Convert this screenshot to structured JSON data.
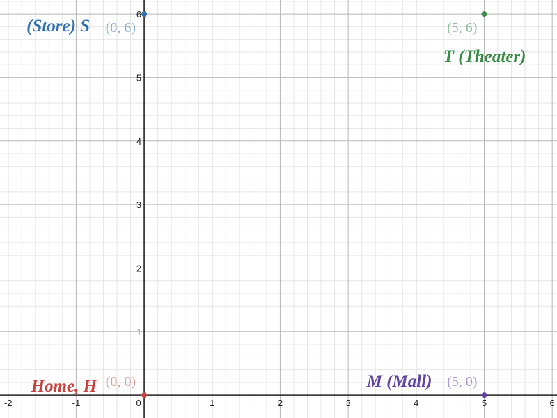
{
  "chart_data": {
    "type": "scatter",
    "title": "",
    "xlabel": "",
    "ylabel": "",
    "xlim": [
      -2.12,
      6.07
    ],
    "ylim": [
      -0.36,
      6.22
    ],
    "grid": true,
    "minor_subdivisions": 5,
    "x_ticks": [
      "-2",
      "-1",
      "0",
      "1",
      "2",
      "3",
      "4",
      "5",
      "6"
    ],
    "y_ticks": [
      "1",
      "2",
      "3",
      "4",
      "5",
      "6"
    ],
    "points": [
      {
        "name": "S",
        "label": "(Store) S",
        "coord_label": "(0, 6)",
        "x": 0,
        "y": 6,
        "color": "#2d70b3"
      },
      {
        "name": "T",
        "label": "T (Theater)",
        "coord_label": "(5, 6)",
        "x": 5,
        "y": 6,
        "color": "#388c46"
      },
      {
        "name": "H",
        "label": "Home, H",
        "coord_label": "(0, 0)",
        "x": 0,
        "y": 0,
        "color": "#c74440"
      },
      {
        "name": "M",
        "label": "M (Mall)",
        "coord_label": "(5, 0)",
        "x": 5,
        "y": 0,
        "color": "#6042a6"
      }
    ]
  }
}
